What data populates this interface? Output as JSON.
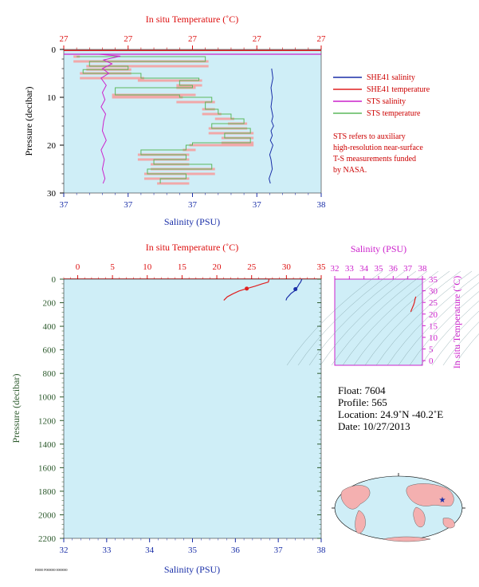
{
  "colors": {
    "plot_bg": "#cfeef7",
    "sbe_salinity": "#1a2fa8",
    "sbe_temperature": "#e02020",
    "sts_salinity": "#cc22cc",
    "sts_temperature": "#5cb85c",
    "sts_temperature_fill": "#f4a0a0",
    "pressure_axis": "#2d5a2d",
    "ts_axis": "#cc22cc",
    "map_land": "#f4b0b0",
    "map_ocean": "#cfeef7",
    "float_marker": "#1a2fa8"
  },
  "chart_data": [
    {
      "type": "line",
      "panel": "top-profile",
      "title_top": "In situ Temperature (˚C)",
      "xlabel_bottom": "Salinity (PSU)",
      "ylabel": "Pressure (decibar)",
      "top_ticks": [
        "27",
        "27",
        "27",
        "27",
        "27"
      ],
      "bottom_ticks": [
        "37",
        "37",
        "37",
        "37",
        "38"
      ],
      "y_ticks": [
        "0",
        "10",
        "20",
        "30"
      ],
      "ylim": [
        0,
        30
      ],
      "xlim_index": [
        0,
        4
      ],
      "series": [
        {
          "name": "SHE41 salinity",
          "color": "#1a2fa8",
          "x": [
            3.23,
            3.25,
            3.22,
            3.24,
            3.22,
            3.25,
            3.23,
            3.26,
            3.22,
            3.24,
            3.21,
            3.25,
            3.2,
            3.22,
            3.24,
            3.19,
            3.21
          ],
          "y": [
            4,
            6,
            8,
            10,
            12,
            14,
            15,
            16,
            17,
            18,
            19,
            20,
            22,
            23,
            25,
            27,
            28
          ]
        },
        {
          "name": "SHE41 temperature",
          "color": "#e02020",
          "x": [
            4.0,
            0.0
          ],
          "y": [
            0.2,
            0.2
          ]
        },
        {
          "name": "STS salinity",
          "color": "#cc22cc",
          "x": [
            0.55,
            0.88,
            0.62,
            0.75,
            0.6,
            0.7,
            0.58,
            0.66,
            0.6,
            0.64,
            0.58,
            0.65,
            0.62,
            0.6,
            0.66,
            0.58,
            0.63,
            0.6,
            0.64,
            0.61
          ],
          "y": [
            1.0,
            1.4,
            2.2,
            3.0,
            4.0,
            5.0,
            6.0,
            7.5,
            9.0,
            10.5,
            12.0,
            13.5,
            15.0,
            17.0,
            19.0,
            21.0,
            23.0,
            25.0,
            27.0,
            28.0
          ]
        },
        {
          "name": "STS temperature",
          "color": "#5cb85c",
          "x": [
            0.2,
            2.2,
            0.4,
            1.0,
            0.3,
            1.2,
            2.1,
            1.8,
            2.0,
            0.8,
            1.8,
            2.3,
            2.2,
            2.4,
            2.6,
            2.8,
            2.3,
            2.9,
            2.5,
            2.9,
            2.0,
            1.9,
            1.2,
            1.9,
            1.4,
            2.3,
            1.3,
            1.9,
            1.5
          ],
          "y": [
            1.5,
            2.5,
            3.5,
            4.2,
            5.0,
            6.0,
            6.5,
            7.5,
            8.0,
            9.5,
            10.0,
            11.0,
            12.5,
            13.5,
            14.5,
            15.5,
            16.5,
            17.5,
            18.5,
            19.5,
            20.0,
            21.0,
            22.0,
            23.0,
            24.0,
            25.0,
            26.0,
            27.0,
            28.0
          ]
        }
      ]
    },
    {
      "type": "line",
      "panel": "bottom-profile",
      "title_top": "In situ Temperature (˚C)",
      "xlabel_bottom": "Salinity (PSU)",
      "ylabel": "Pressure (decibar)",
      "top_ticks": [
        0,
        5,
        10,
        15,
        20,
        25,
        30,
        35
      ],
      "bottom_ticks": [
        32,
        33,
        34,
        35,
        36,
        37,
        38
      ],
      "y_ticks": [
        0,
        200,
        400,
        600,
        800,
        1000,
        1200,
        1400,
        1600,
        1800,
        2000,
        2200
      ],
      "xlim_temperature": [
        -2,
        35
      ],
      "xlim_salinity": [
        32,
        38
      ],
      "ylim": [
        2200,
        0
      ],
      "series": [
        {
          "name": "temperature",
          "color": "#e02020",
          "axis": "top",
          "x": [
            27.5,
            27.4,
            26.5,
            25.5,
            24.3,
            23.2,
            22.3,
            21.5,
            21.0
          ],
          "y": [
            0,
            25,
            40,
            60,
            80,
            100,
            125,
            150,
            180
          ]
        },
        {
          "name": "salinity",
          "color": "#1a2fa8",
          "axis": "bottom",
          "x": [
            37.55,
            37.52,
            37.48,
            37.45,
            37.4,
            37.38,
            37.3,
            37.25,
            37.2,
            37.18
          ],
          "y": [
            0,
            25,
            45,
            65,
            85,
            100,
            120,
            140,
            160,
            180
          ]
        }
      ],
      "markers": [
        {
          "axis": "top",
          "x": 24.3,
          "y": 80,
          "color": "#e02020"
        },
        {
          "axis": "bottom",
          "x": 37.4,
          "y": 85,
          "color": "#1a2fa8"
        }
      ]
    },
    {
      "type": "scatter",
      "panel": "ts-diagram",
      "title_top": "Salinity (PSU)",
      "ylabel_right": "In situ Temperature (˚C)",
      "top_ticks": [
        32,
        33,
        34,
        35,
        36,
        37,
        38
      ],
      "right_ticks": [
        0,
        5,
        10,
        15,
        20,
        25,
        30,
        35
      ],
      "xlim": [
        32,
        38
      ],
      "ylim": [
        -2,
        35
      ],
      "series": [
        {
          "name": "ts",
          "color": "#e02020",
          "x": [
            37.55,
            37.5,
            37.45,
            37.4,
            37.3,
            37.2
          ],
          "y": [
            27.5,
            26.5,
            25.0,
            24.0,
            22.5,
            21.0
          ]
        }
      ]
    }
  ],
  "legend": {
    "items": [
      {
        "label": "SHE41 salinity",
        "color": "#1a2fa8"
      },
      {
        "label": "SHE41 temperature",
        "color": "#e02020"
      },
      {
        "label": "STS salinity",
        "color": "#cc22cc"
      },
      {
        "label": "STS temperature",
        "color": "#5cb85c"
      }
    ]
  },
  "note": {
    "lines": [
      "STS refers to auxiliary",
      "high-resolution near-surface",
      "T-S measurements funded",
      "by NASA."
    ]
  },
  "info": {
    "float": "Float:  7604",
    "profile": "Profile:  565",
    "location": "Location:  24.9˚N  -40.2˚E",
    "date": "Date:  10/27/2013"
  },
  "footer": {
    "stamp": "F0000 P000000 0000000"
  }
}
